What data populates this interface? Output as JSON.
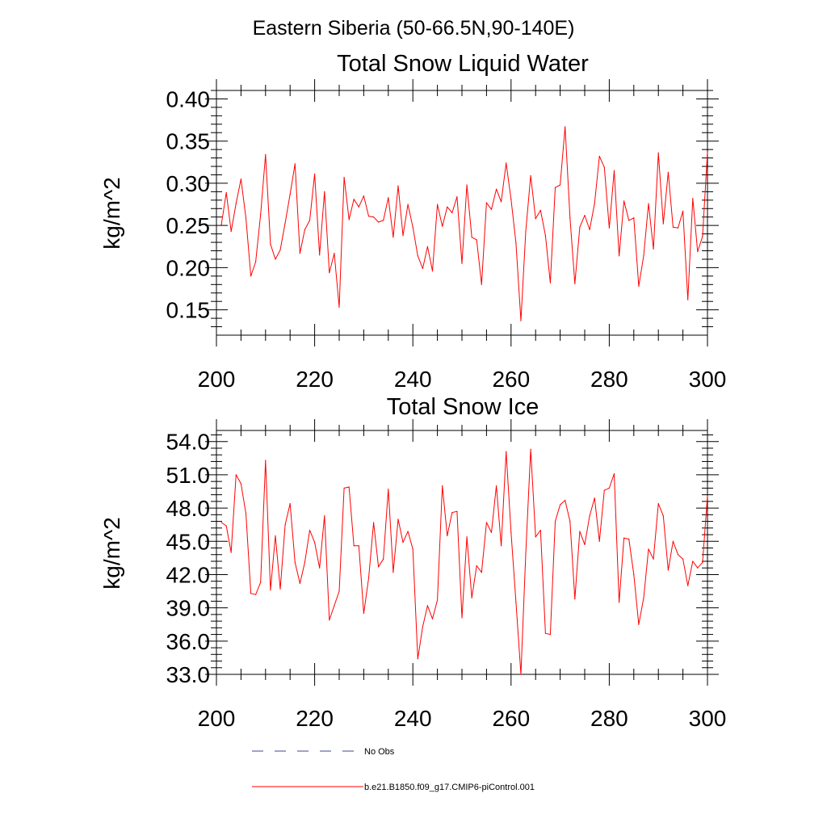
{
  "figure": {
    "title": "Eastern Siberia (50-66.5N,90-140E)"
  },
  "chart_data": [
    {
      "type": "line",
      "title": "Total Snow Liquid Water",
      "xlabel": "",
      "ylabel": "kg/m^2",
      "xlim": [
        200,
        300
      ],
      "ylim": [
        0.12,
        0.41
      ],
      "xticks": [
        200,
        220,
        240,
        260,
        280,
        300
      ],
      "xtick_labels": [
        "200",
        "220",
        "240",
        "260",
        "280",
        "300"
      ],
      "yticks": [
        0.15,
        0.2,
        0.25,
        0.3,
        0.35,
        0.4
      ],
      "ytick_labels": [
        "0.15",
        "0.20",
        "0.25",
        "0.30",
        "0.35",
        "0.40"
      ],
      "series": [
        {
          "name": "b.e21.B1850.f09_g17.CMIP6-piControl.001",
          "color": "#ff0000",
          "x_start": 201,
          "x_step": 1,
          "values": [
            0.251,
            0.289,
            0.243,
            0.276,
            0.305,
            0.259,
            0.19,
            0.207,
            0.263,
            0.334,
            0.228,
            0.21,
            0.221,
            0.253,
            0.287,
            0.323,
            0.217,
            0.245,
            0.256,
            0.311,
            0.215,
            0.29,
            0.194,
            0.217,
            0.153,
            0.307,
            0.257,
            0.281,
            0.272,
            0.285,
            0.261,
            0.26,
            0.254,
            0.256,
            0.283,
            0.236,
            0.297,
            0.238,
            0.275,
            0.248,
            0.214,
            0.199,
            0.225,
            0.196,
            0.275,
            0.249,
            0.272,
            0.265,
            0.284,
            0.205,
            0.298,
            0.236,
            0.233,
            0.18,
            0.277,
            0.269,
            0.293,
            0.278,
            0.324,
            0.281,
            0.229,
            0.137,
            0.243,
            0.309,
            0.258,
            0.268,
            0.238,
            0.182,
            0.295,
            0.298,
            0.367,
            0.259,
            0.181,
            0.248,
            0.262,
            0.245,
            0.276,
            0.332,
            0.319,
            0.247,
            0.315,
            0.214,
            0.279,
            0.256,
            0.259,
            0.178,
            0.214,
            0.276,
            0.222,
            0.336,
            0.252,
            0.313,
            0.248,
            0.247,
            0.267,
            0.162,
            0.282,
            0.219,
            0.237,
            0.337
          ]
        }
      ]
    },
    {
      "type": "line",
      "title": "Total Snow Ice",
      "xlabel": "",
      "ylabel": "kg/m^2",
      "xlim": [
        200,
        300
      ],
      "ylim": [
        33.0,
        55.0
      ],
      "xticks": [
        200,
        220,
        240,
        260,
        280,
        300
      ],
      "xtick_labels": [
        "200",
        "220",
        "240",
        "260",
        "280",
        "300"
      ],
      "yticks": [
        33,
        36,
        39,
        42,
        45,
        48,
        51,
        54
      ],
      "ytick_labels": [
        "33.0",
        "36.0",
        "39.0",
        "42.0",
        "45.0",
        "48.0",
        "51.0",
        "54.0"
      ],
      "series": [
        {
          "name": "b.e21.B1850.f09_g17.CMIP6-piControl.001",
          "color": "#ff0000",
          "x_start": 201,
          "x_step": 1,
          "values": [
            46.7,
            46.4,
            44.0,
            51.0,
            50.2,
            47.5,
            40.3,
            40.2,
            41.3,
            52.3,
            40.6,
            45.5,
            40.7,
            46.5,
            48.4,
            43.1,
            41.2,
            43.1,
            46.0,
            44.9,
            42.6,
            47.3,
            37.9,
            39.2,
            40.5,
            49.8,
            49.9,
            44.6,
            44.6,
            38.5,
            41.7,
            46.7,
            42.7,
            43.4,
            49.7,
            42.2,
            47.0,
            44.9,
            45.9,
            44.3,
            34.4,
            37.3,
            39.2,
            38.0,
            39.7,
            50.0,
            45.5,
            47.6,
            47.7,
            38.1,
            45.4,
            39.9,
            42.8,
            42.2,
            46.7,
            45.8,
            50.0,
            44.6,
            53.1,
            45.8,
            39.5,
            33.0,
            43.9,
            53.3,
            45.4,
            46.0,
            36.7,
            36.6,
            46.8,
            48.3,
            48.7,
            46.8,
            39.8,
            45.9,
            44.7,
            47.3,
            48.9,
            45.0,
            49.6,
            49.8,
            51.1,
            39.5,
            45.3,
            45.2,
            42.0,
            37.5,
            39.9,
            44.3,
            43.4,
            48.4,
            47.3,
            42.4,
            45.0,
            43.8,
            43.4,
            41.0,
            43.2,
            42.6,
            43.1,
            49.1
          ]
        }
      ]
    }
  ],
  "legend": {
    "placement": "bottom",
    "entries": [
      {
        "label": "No Obs",
        "style": "dashed",
        "color": "#3c4a8c"
      },
      {
        "label": "b.e21.B1850.f09_g17.CMIP6-piControl.001",
        "style": "solid",
        "color": "#ff0000"
      }
    ]
  }
}
